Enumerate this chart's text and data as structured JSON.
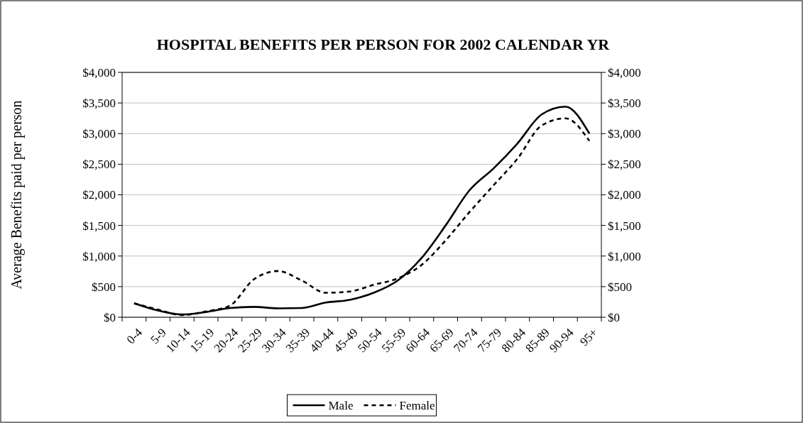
{
  "chart_data": {
    "type": "line",
    "title": "HOSPITAL BENEFITS PER PERSON FOR 2002 CALENDAR YR",
    "ylabel": "Average Benefits paid per person",
    "categories": [
      "0-4",
      "5-9",
      "10-14",
      "15-19",
      "20-24",
      "25-29",
      "30-34",
      "35-39",
      "40-44",
      "45-49",
      "50-54",
      "55-59",
      "60-64",
      "65-69",
      "70-74",
      "75-79",
      "80-84",
      "85-89",
      "90-94",
      "95+"
    ],
    "series": [
      {
        "name": "Male",
        "color": "#000000",
        "line_style": "solid",
        "values": [
          230,
          110,
          45,
          85,
          150,
          170,
          145,
          150,
          240,
          285,
          400,
          600,
          970,
          1500,
          2075,
          2430,
          2840,
          3310,
          3440,
          3000
        ]
      },
      {
        "name": "Female",
        "color": "#000000",
        "line_style": "dashed",
        "values": [
          225,
          125,
          35,
          95,
          190,
          620,
          755,
          600,
          400,
          420,
          530,
          635,
          855,
          1255,
          1720,
          2155,
          2590,
          3130,
          3250,
          2880
        ]
      }
    ],
    "ylim": [
      0,
      4000
    ],
    "yticks": [
      {
        "value": 0,
        "label": "$0"
      },
      {
        "value": 500,
        "label": "$500"
      },
      {
        "value": 1000,
        "label": "$1,000"
      },
      {
        "value": 1500,
        "label": "$1,500"
      },
      {
        "value": 2000,
        "label": "$2,000"
      },
      {
        "value": 2500,
        "label": "$2,500"
      },
      {
        "value": 3000,
        "label": "$3,000"
      },
      {
        "value": 3500,
        "label": "$3,500"
      },
      {
        "value": 4000,
        "label": "$4,000"
      }
    ],
    "y2lim": [
      0,
      4000
    ],
    "y2ticks": [
      {
        "value": 0,
        "label": "$0"
      },
      {
        "value": 500,
        "label": "$500"
      },
      {
        "value": 1000,
        "label": "$1,000"
      },
      {
        "value": 1500,
        "label": "$1,500"
      },
      {
        "value": 2000,
        "label": "$2,000"
      },
      {
        "value": 2500,
        "label": "$2,500"
      },
      {
        "value": 3000,
        "label": "$3,000"
      },
      {
        "value": 3500,
        "label": "$3,500"
      },
      {
        "value": 4000,
        "label": "$4,000"
      }
    ],
    "grid": "y",
    "legend": "bottom",
    "marker": "none"
  }
}
